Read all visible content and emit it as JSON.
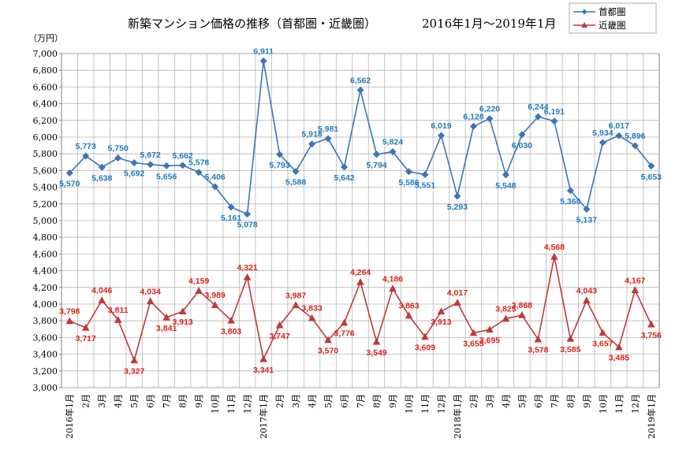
{
  "chart_data": {
    "type": "line",
    "title": "新築マンション価格の推移（首都圏・近畿圏）",
    "period": "2016年1月～2019年1月",
    "ylabel": "（万円）",
    "ylim": [
      3000,
      7000
    ],
    "yticks": [
      "3,000",
      "3,200",
      "3,400",
      "3,600",
      "3,800",
      "4,000",
      "4,200",
      "4,400",
      "4,600",
      "4,800",
      "5,000",
      "5,200",
      "5,400",
      "5,600",
      "5,800",
      "6,000",
      "6,200",
      "6,400",
      "6,600",
      "6,800",
      "7,000"
    ],
    "categories": [
      "2016年1月",
      "2月",
      "3月",
      "4月",
      "5月",
      "6月",
      "7月",
      "8月",
      "9月",
      "10月",
      "11月",
      "12月",
      "2017年1月",
      "2月",
      "3月",
      "4月",
      "5月",
      "6月",
      "7月",
      "8月",
      "9月",
      "10月",
      "11月",
      "12月",
      "2018年1月",
      "2月",
      "3月",
      "4月",
      "5月",
      "6月",
      "7月",
      "8月",
      "9月",
      "10月",
      "11月",
      "12月",
      "2019年1月"
    ],
    "series": [
      {
        "name": "首都圏",
        "color": "#3d74b9",
        "marker": "diamond",
        "values": [
          5570,
          5773,
          5638,
          5750,
          5692,
          5672,
          5656,
          5662,
          5578,
          5406,
          5161,
          5078,
          6911,
          5793,
          5588,
          5918,
          5981,
          5642,
          6562,
          5794,
          5824,
          5586,
          5551,
          6019,
          5293,
          6128,
          6220,
          5548,
          6030,
          6244,
          6191,
          5360,
          5137,
          5934,
          6017,
          5896,
          5653
        ],
        "labels": [
          "5,570",
          "5,773",
          "5,638",
          "5,750",
          "5,692",
          "5,672",
          "5,656",
          "5,662",
          "5,578",
          "5,406",
          "5,161",
          "5,078",
          "6,911",
          "5,793",
          "5,588",
          "5,918",
          "5,981",
          "5,642",
          "6,562",
          "5,794",
          "5,824",
          "5,586",
          "5,551",
          "6,019",
          "5,293",
          "6,128",
          "6,220",
          "5,548",
          "6,030",
          "6,244",
          "6,191",
          "5,360",
          "5,137",
          "5,934",
          "6,017",
          "5,896",
          "5,653"
        ]
      },
      {
        "name": "近畿圏",
        "color": "#c0393b",
        "marker": "triangle",
        "values": [
          3798,
          3717,
          4046,
          3811,
          3327,
          4034,
          3841,
          3913,
          4159,
          3989,
          3803,
          4321,
          3341,
          3747,
          3987,
          3833,
          3570,
          3776,
          4264,
          3549,
          4186,
          3863,
          3609,
          3913,
          4017,
          3655,
          3695,
          3825,
          3868,
          3578,
          4568,
          3585,
          4043,
          3657,
          3485,
          4167,
          3756
        ],
        "labels": [
          "3,798",
          "3,717",
          "4,046",
          "3,811",
          "3,327",
          "4,034",
          "3,841",
          "3,913",
          "4,159",
          "3,989",
          "3,803",
          "4,321",
          "3,341",
          "3,747",
          "3,987",
          "3,833",
          "3,570",
          "3,776",
          "4,264",
          "3,549",
          "4,186",
          "3,863",
          "3,609",
          "3,913",
          "4,017",
          "3,655",
          "3,695",
          "3,825",
          "3,868",
          "3,578",
          "4,568",
          "3,585",
          "4,043",
          "3,657",
          "3,485",
          "4,167",
          "3,756"
        ]
      }
    ],
    "label_positions": {
      "首都圏": [
        "below",
        "above",
        "below",
        "above",
        "below",
        "above",
        "below",
        "above",
        "above",
        "above",
        "below",
        "below",
        "above",
        "below",
        "below",
        "above",
        "above",
        "below",
        "above",
        "below",
        "above",
        "below",
        "below",
        "above",
        "below",
        "above",
        "above",
        "below",
        "below",
        "above",
        "above",
        "below",
        "below",
        "above",
        "above",
        "above",
        "below"
      ],
      "近畿圏": [
        "above",
        "below",
        "above",
        "above",
        "below",
        "above",
        "below",
        "below",
        "above",
        "above",
        "below",
        "above",
        "below",
        "below",
        "above",
        "above",
        "below",
        "below",
        "above",
        "below",
        "above",
        "above",
        "below",
        "below",
        "above",
        "below",
        "below",
        "above",
        "above",
        "below",
        "above",
        "below",
        "above",
        "below",
        "below",
        "above",
        "below"
      ]
    }
  }
}
